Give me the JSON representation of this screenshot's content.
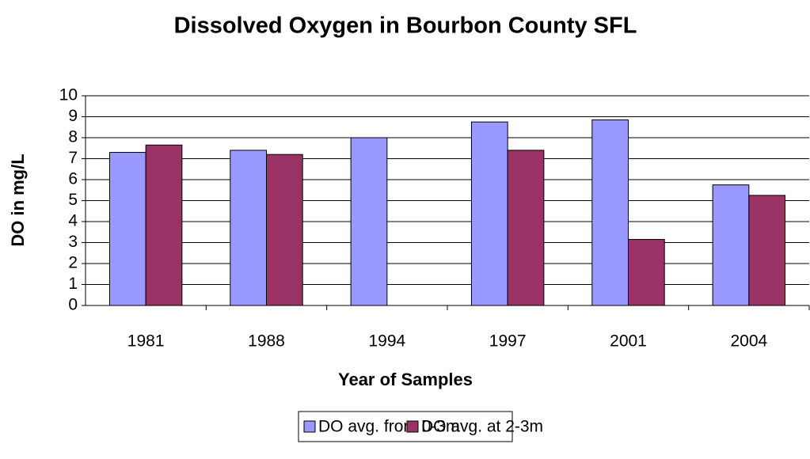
{
  "chart_data": {
    "type": "bar",
    "title": "Dissolved Oxygen in Bourbon County SFL",
    "xlabel": "Year of Samples",
    "ylabel": "DO in mg/L",
    "categories": [
      "1981",
      "1988",
      "1994",
      "1997",
      "2001",
      "2004"
    ],
    "series": [
      {
        "name": "DO avg. from 0-3m",
        "color": "#9999ff",
        "values": [
          7.3,
          7.4,
          8.0,
          8.75,
          8.85,
          5.75
        ]
      },
      {
        "name": "DO avg. at 2-3m",
        "color": "#993366",
        "values": [
          7.65,
          7.2,
          null,
          7.4,
          3.15,
          5.25
        ]
      }
    ],
    "ylim": [
      0,
      10
    ],
    "yticks": [
      0,
      1,
      2,
      3,
      4,
      5,
      6,
      7,
      8,
      9,
      10
    ],
    "grid": true,
    "legend": "bottom"
  }
}
